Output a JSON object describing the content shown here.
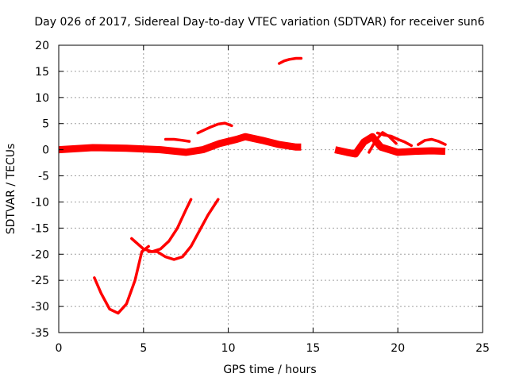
{
  "chart_data": {
    "type": "scatter",
    "title": "Day 026 of 2017, Sidereal Day-to-day VTEC variation (SDTVAR) for receiver sun6",
    "xlabel": "GPS time / hours",
    "ylabel": "SDTVAR / TECUs",
    "xlim": [
      0,
      25
    ],
    "ylim": [
      -35,
      20
    ],
    "grid": true,
    "x_ticks": [
      0,
      5,
      10,
      15,
      20,
      25
    ],
    "y_ticks": [
      -35,
      -30,
      -25,
      -20,
      -15,
      -10,
      -5,
      0,
      5,
      10,
      15,
      20
    ],
    "point_color": "#ff0000",
    "series": [
      {
        "name": "baseline-band-1",
        "style": "band",
        "x": [
          0,
          2,
          4,
          6,
          7.5,
          8.5,
          9.5,
          10.5,
          11,
          12,
          13,
          14,
          14.3
        ],
        "y": [
          0,
          0.4,
          0.3,
          0,
          -0.5,
          0,
          1.2,
          2,
          2.5,
          1.8,
          1,
          0.5,
          0.5
        ]
      },
      {
        "name": "baseline-band-2",
        "style": "band",
        "x": [
          16.3,
          17,
          17.5,
          18,
          18.5,
          19,
          20,
          21,
          22,
          22.8
        ],
        "y": [
          0,
          -0.5,
          -0.8,
          1.5,
          2.5,
          0.5,
          -0.5,
          -0.3,
          -0.2,
          -0.3
        ]
      },
      {
        "name": "arc-15-17",
        "style": "trace",
        "x": [
          13,
          13.3,
          13.6,
          14,
          14.3
        ],
        "y": [
          16.5,
          17,
          17.3,
          17.5,
          17.5
        ]
      },
      {
        "name": "arc-mid-rise",
        "style": "trace",
        "x": [
          8.2,
          8.6,
          9,
          9.4,
          9.8,
          10.2
        ],
        "y": [
          3.2,
          3.8,
          4.4,
          4.9,
          5.1,
          4.6
        ]
      },
      {
        "name": "arc-flat-2",
        "style": "trace",
        "x": [
          6.3,
          6.8,
          7.3,
          7.7
        ],
        "y": [
          2,
          2,
          1.8,
          1.6
        ]
      },
      {
        "name": "arc-19-bumps",
        "style": "trace",
        "x": [
          18.8,
          19.2,
          19.6,
          20,
          20.4,
          20.8
        ],
        "y": [
          3.2,
          2.8,
          2.6,
          2,
          1.5,
          0.8
        ]
      },
      {
        "name": "arc-21-22",
        "style": "trace",
        "x": [
          21.2,
          21.6,
          22,
          22.4,
          22.8
        ],
        "y": [
          1,
          1.8,
          2,
          1.6,
          1
        ]
      },
      {
        "name": "arc-20-low",
        "style": "trace",
        "x": [
          18.3,
          18.7,
          19.1,
          19.5,
          19.9
        ],
        "y": [
          -0.5,
          1.8,
          3.3,
          2.5,
          1.2
        ]
      },
      {
        "name": "arc-deep-min",
        "style": "trace",
        "x": [
          2.1,
          2.5,
          3,
          3.5,
          4,
          4.5,
          4.9,
          5.3
        ],
        "y": [
          -24.5,
          -27.5,
          -30.5,
          -31.3,
          -29.5,
          -25,
          -19.5,
          -18.5
        ]
      },
      {
        "name": "arc-left-rise",
        "style": "trace",
        "x": [
          4.3,
          5,
          5.5,
          6,
          6.5,
          7,
          7.5,
          7.8
        ],
        "y": [
          -17,
          -19,
          -19.5,
          -19,
          -17.5,
          -15,
          -11.5,
          -9.5
        ]
      },
      {
        "name": "arc-right-rise",
        "style": "trace",
        "x": [
          5.3,
          5.8,
          6.3,
          6.8,
          7.3,
          7.8,
          8.3,
          8.8,
          9.4
        ],
        "y": [
          -19.5,
          -19.5,
          -20.5,
          -21,
          -20.5,
          -18.5,
          -15.5,
          -12.5,
          -9.5
        ]
      }
    ]
  }
}
